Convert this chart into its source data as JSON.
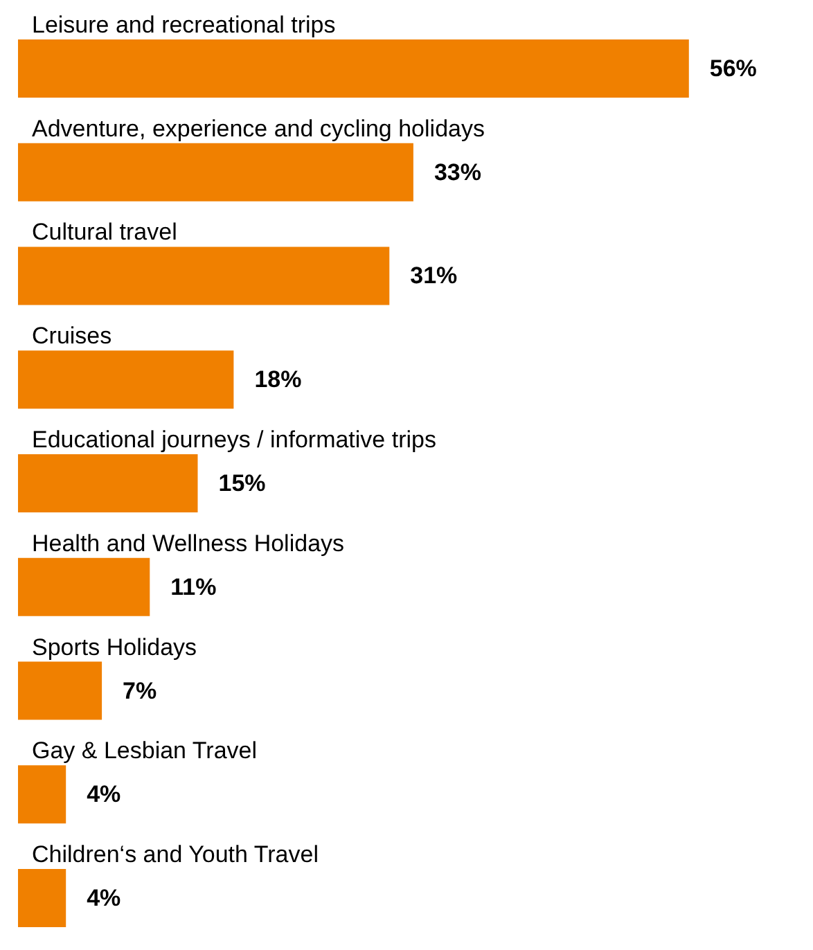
{
  "chart_data": {
    "type": "bar",
    "orientation": "horizontal",
    "categories": [
      "Leisure and recreational trips",
      "Adventure, experience and cycling holidays",
      "Cultural travel",
      "Cruises",
      "Educational journeys / informative trips",
      "Health and Wellness Holidays",
      "Sports Holidays",
      "Gay & Lesbian Travel",
      "Children‘s and Youth Travel"
    ],
    "values": [
      56,
      33,
      31,
      18,
      15,
      11,
      7,
      4,
      4
    ],
    "value_labels": [
      "56%",
      "33%",
      "31%",
      "18%",
      "15%",
      "11%",
      "7%",
      "4%",
      "4%"
    ],
    "color": "#f08000"
  }
}
